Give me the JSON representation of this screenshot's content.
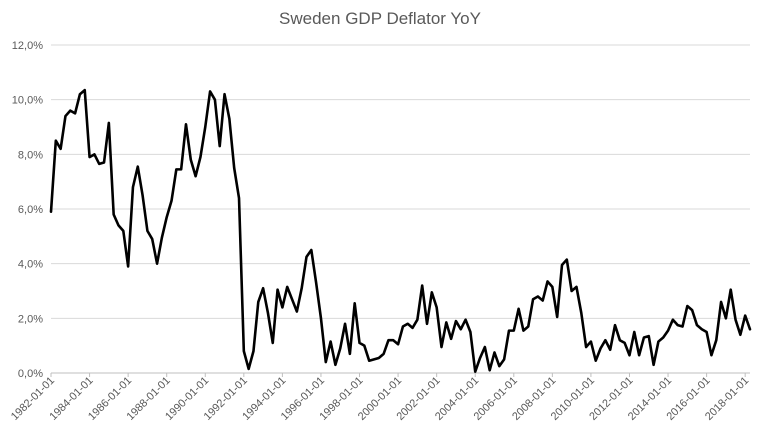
{
  "chart_data": {
    "type": "line",
    "title": "Sweden GDP Deflator YoY",
    "xlabel": "",
    "ylabel": "",
    "ylim": [
      0,
      12
    ],
    "grid": true,
    "legend": "none",
    "y_ticks": [
      "0,0%",
      "2,0%",
      "4,0%",
      "6,0%",
      "8,0%",
      "10,0%",
      "12,0%"
    ],
    "x_ticks": [
      "1982-01-01",
      "1984-01-01",
      "1986-01-01",
      "1988-01-01",
      "1990-01-01",
      "1992-01-01",
      "1994-01-01",
      "1996-01-01",
      "1998-01-01",
      "2000-01-01",
      "2002-01-01",
      "2004-01-01",
      "2006-01-01",
      "2008-01-01",
      "2010-01-01",
      "2012-01-01",
      "2014-01-01",
      "2016-01-01",
      "2018-01-01"
    ],
    "series": [
      {
        "name": "Sweden GDP Deflator YoY",
        "color": "#000000",
        "frequency": "quarterly",
        "start": "1982-01-01",
        "values": [
          5.9,
          8.5,
          8.2,
          9.4,
          9.6,
          9.5,
          10.2,
          10.35,
          7.9,
          8.0,
          7.65,
          7.7,
          9.15,
          5.8,
          5.4,
          5.2,
          3.9,
          6.8,
          7.55,
          6.5,
          5.2,
          4.9,
          4.0,
          4.95,
          5.7,
          6.3,
          7.45,
          7.45,
          9.1,
          7.8,
          7.2,
          7.9,
          9.0,
          10.3,
          10.0,
          8.3,
          10.2,
          9.3,
          7.5,
          6.4,
          0.8,
          0.15,
          0.8,
          2.6,
          3.1,
          2.2,
          1.1,
          3.05,
          2.4,
          3.15,
          2.7,
          2.25,
          3.1,
          4.25,
          4.5,
          3.3,
          2.0,
          0.4,
          1.15,
          0.3,
          0.9,
          1.8,
          0.7,
          2.55,
          1.1,
          1.0,
          0.45,
          0.5,
          0.55,
          0.7,
          1.2,
          1.2,
          1.05,
          1.7,
          1.8,
          1.65,
          1.95,
          3.2,
          1.8,
          2.95,
          2.4,
          0.95,
          1.85,
          1.25,
          1.9,
          1.6,
          1.95,
          1.5,
          0.05,
          0.55,
          0.95,
          0.1,
          0.75,
          0.25,
          0.5,
          1.55,
          1.55,
          2.35,
          1.55,
          1.7,
          2.7,
          2.8,
          2.65,
          3.35,
          3.15,
          2.05,
          3.95,
          4.15,
          3.0,
          3.15,
          2.2,
          0.95,
          1.15,
          0.45,
          0.9,
          1.2,
          0.85,
          1.75,
          1.2,
          1.1,
          0.65,
          1.5,
          0.65,
          1.3,
          1.35,
          0.3,
          1.15,
          1.3,
          1.55,
          1.95,
          1.75,
          1.7,
          2.45,
          2.3,
          1.75,
          1.6,
          1.5,
          0.65,
          1.2,
          2.6,
          2.0,
          3.05,
          1.95,
          1.4,
          2.1,
          1.6
        ]
      }
    ]
  }
}
